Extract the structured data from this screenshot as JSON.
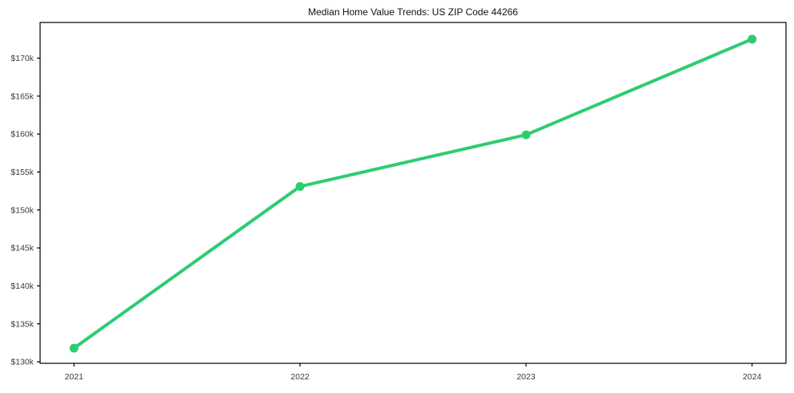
{
  "figure": {
    "background": "#ffffff"
  },
  "chart_data": {
    "type": "line",
    "title": "Median Home Value Trends: US ZIP Code 44266",
    "xlabel": "",
    "ylabel": "",
    "x": [
      2021,
      2022,
      2023,
      2024
    ],
    "values": [
      131800,
      153100,
      159900,
      172500
    ],
    "x_ticks": [
      {
        "value": 2021,
        "label": "2021"
      },
      {
        "value": 2022,
        "label": "2022"
      },
      {
        "value": 2023,
        "label": "2023"
      },
      {
        "value": 2024,
        "label": "2024"
      }
    ],
    "y_ticks": [
      {
        "value": 130000,
        "label": "$130k"
      },
      {
        "value": 135000,
        "label": "$135k"
      },
      {
        "value": 140000,
        "label": "$140k"
      },
      {
        "value": 145000,
        "label": "$145k"
      },
      {
        "value": 150000,
        "label": "$150k"
      },
      {
        "value": 155000,
        "label": "$155k"
      },
      {
        "value": 160000,
        "label": "$160k"
      },
      {
        "value": 165000,
        "label": "$165k"
      },
      {
        "value": 170000,
        "label": "$170k"
      }
    ],
    "xlim": [
      2020.85,
      2024.15
    ],
    "ylim": [
      129800,
      174700
    ],
    "grid": false,
    "legend": false,
    "line_color": "#2ecc71",
    "axis_color": "#000000",
    "tick_label_color": "#3a3a3a"
  }
}
